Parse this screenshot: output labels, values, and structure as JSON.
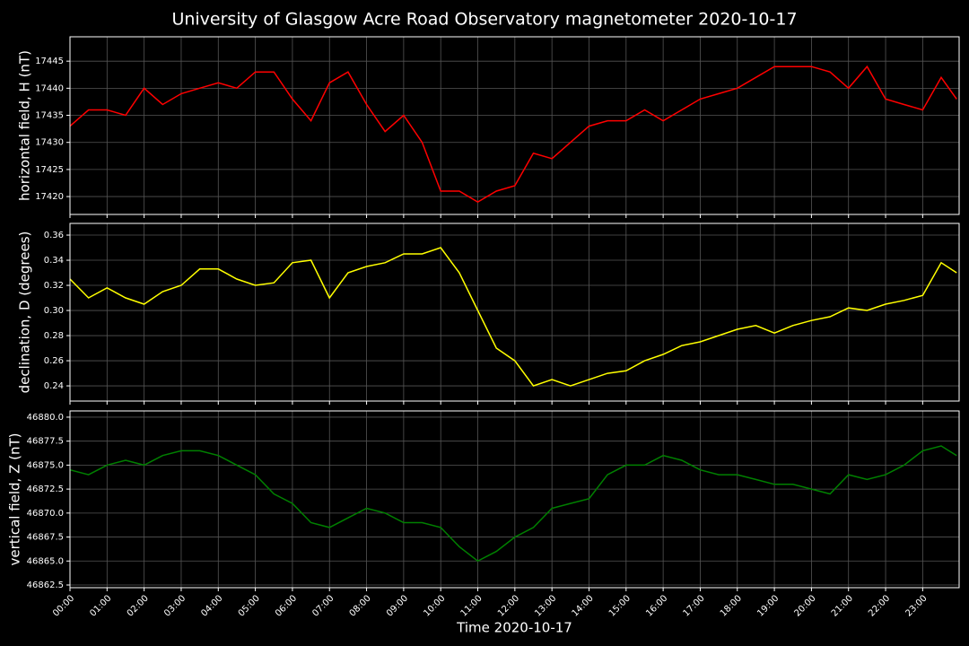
{
  "title": "University of Glasgow Acre Road Observatory magnetometer 2020-10-17",
  "chart_data": [
    {
      "type": "line",
      "ylabel": "horizontal field, H (nT)",
      "x": [
        "00:00",
        "00:30",
        "01:00",
        "01:30",
        "02:00",
        "02:30",
        "03:00",
        "03:30",
        "04:00",
        "04:30",
        "05:00",
        "05:30",
        "06:00",
        "06:30",
        "07:00",
        "07:30",
        "08:00",
        "08:30",
        "09:00",
        "09:30",
        "10:00",
        "10:30",
        "11:00",
        "11:30",
        "12:00",
        "12:30",
        "13:00",
        "13:30",
        "14:00",
        "14:30",
        "15:00",
        "15:30",
        "16:00",
        "16:30",
        "17:00",
        "17:30",
        "18:00",
        "18:30",
        "19:00",
        "19:30",
        "20:00",
        "20:30",
        "21:00",
        "21:30",
        "22:00",
        "22:30",
        "23:00",
        "23:30",
        "23:55"
      ],
      "series": [
        {
          "name": "H",
          "color": "#ff0000",
          "values": [
            17433,
            17436,
            17436,
            17435,
            17440,
            17437,
            17439,
            17440,
            17441,
            17440,
            17443,
            17443,
            17438,
            17434,
            17441,
            17443,
            17437,
            17432,
            17435,
            17430,
            17421,
            17421,
            17419,
            17421,
            17422,
            17428,
            17427,
            17430,
            17433,
            17434,
            17434,
            17436,
            17434,
            17436,
            17438,
            17439,
            17440,
            17442,
            17444,
            17444,
            17444,
            17443,
            17440,
            17444,
            17438,
            17437,
            17436,
            17442,
            17438
          ]
        }
      ],
      "xlim": [
        "00:00",
        "23:59"
      ],
      "xticks": [
        "00:00",
        "01:00",
        "02:00",
        "03:00",
        "04:00",
        "05:00",
        "06:00",
        "07:00",
        "08:00",
        "09:00",
        "10:00",
        "11:00",
        "12:00",
        "13:00",
        "14:00",
        "15:00",
        "16:00",
        "17:00",
        "18:00",
        "19:00",
        "20:00",
        "21:00",
        "22:00",
        "23:00"
      ],
      "ylim": [
        17416.7,
        17449.5
      ],
      "yticks": [
        17420,
        17425,
        17430,
        17435,
        17440,
        17445
      ],
      "grid": true
    },
    {
      "type": "line",
      "ylabel": "declination, D (degrees)",
      "x": [
        "00:00",
        "00:30",
        "01:00",
        "01:30",
        "02:00",
        "02:30",
        "03:00",
        "03:30",
        "04:00",
        "04:30",
        "05:00",
        "05:30",
        "06:00",
        "06:30",
        "07:00",
        "07:30",
        "08:00",
        "08:30",
        "09:00",
        "09:30",
        "10:00",
        "10:30",
        "11:00",
        "11:30",
        "12:00",
        "12:30",
        "13:00",
        "13:30",
        "14:00",
        "14:30",
        "15:00",
        "15:30",
        "16:00",
        "16:30",
        "17:00",
        "17:30",
        "18:00",
        "18:30",
        "19:00",
        "19:30",
        "20:00",
        "20:30",
        "21:00",
        "21:30",
        "22:00",
        "22:30",
        "23:00",
        "23:30",
        "23:55"
      ],
      "series": [
        {
          "name": "D",
          "color": "#ffff00",
          "values": [
            0.325,
            0.31,
            0.318,
            0.31,
            0.305,
            0.315,
            0.32,
            0.333,
            0.333,
            0.325,
            0.32,
            0.322,
            0.338,
            0.34,
            0.31,
            0.33,
            0.335,
            0.338,
            0.345,
            0.345,
            0.35,
            0.33,
            0.3,
            0.27,
            0.26,
            0.24,
            0.245,
            0.24,
            0.245,
            0.25,
            0.252,
            0.26,
            0.265,
            0.272,
            0.275,
            0.28,
            0.285,
            0.288,
            0.282,
            0.288,
            0.292,
            0.295,
            0.302,
            0.3,
            0.305,
            0.308,
            0.312,
            0.338,
            0.33
          ]
        }
      ],
      "xlim": [
        "00:00",
        "23:59"
      ],
      "xticks": [
        "00:00",
        "01:00",
        "02:00",
        "03:00",
        "04:00",
        "05:00",
        "06:00",
        "07:00",
        "08:00",
        "09:00",
        "10:00",
        "11:00",
        "12:00",
        "13:00",
        "14:00",
        "15:00",
        "16:00",
        "17:00",
        "18:00",
        "19:00",
        "20:00",
        "21:00",
        "22:00",
        "23:00"
      ],
      "ylim": [
        0.2279,
        0.3693
      ],
      "yticks": [
        0.24,
        0.26,
        0.28,
        {
          "value": 0.3,
          "label": "0.30"
        },
        0.32,
        0.34,
        0.36
      ],
      "grid": true
    },
    {
      "type": "line",
      "ylabel": "vertical field, Z (nT)",
      "xlabel": "Time 2020-10-17",
      "show_xtick_labels": true,
      "x": [
        "00:00",
        "00:30",
        "01:00",
        "01:30",
        "02:00",
        "02:30",
        "03:00",
        "03:30",
        "04:00",
        "04:30",
        "05:00",
        "05:30",
        "06:00",
        "06:30",
        "07:00",
        "07:30",
        "08:00",
        "08:30",
        "09:00",
        "09:30",
        "10:00",
        "10:30",
        "11:00",
        "11:30",
        "12:00",
        "12:30",
        "13:00",
        "13:30",
        "14:00",
        "14:30",
        "15:00",
        "15:30",
        "16:00",
        "16:30",
        "17:00",
        "17:30",
        "18:00",
        "18:30",
        "19:00",
        "19:30",
        "20:00",
        "20:30",
        "21:00",
        "21:30",
        "22:00",
        "22:30",
        "23:00",
        "23:30",
        "23:55"
      ],
      "series": [
        {
          "name": "Z",
          "color": "#008000",
          "values": [
            46874.5,
            46874,
            46875,
            46875.5,
            46875,
            46876,
            46876.5,
            46876.5,
            46876,
            46875,
            46874,
            46872,
            46871,
            46869,
            46868.5,
            46869.5,
            46870.5,
            46870,
            46869,
            46869,
            46868.5,
            46866.5,
            46865,
            46866,
            46867.5,
            46868.5,
            46870.5,
            46871,
            46871.5,
            46874,
            46875,
            46875,
            46876,
            46875.5,
            46874.5,
            46874,
            46874,
            46873.5,
            46873,
            46873,
            46872.5,
            46872,
            46874,
            46873.5,
            46874,
            46875,
            46876.5,
            46877,
            46876
          ]
        }
      ],
      "xlim": [
        "00:00",
        "23:59"
      ],
      "xticks": [
        "00:00",
        "01:00",
        "02:00",
        "03:00",
        "04:00",
        "05:00",
        "06:00",
        "07:00",
        "08:00",
        "09:00",
        "10:00",
        "11:00",
        "12:00",
        "13:00",
        "14:00",
        "15:00",
        "16:00",
        "17:00",
        "18:00",
        "19:00",
        "20:00",
        "21:00",
        "22:00",
        "23:00"
      ],
      "ylim": [
        46862.22,
        46880.65
      ],
      "yticks": [
        {
          "value": 46862.5,
          "label": "46862.5"
        },
        {
          "value": 46865,
          "label": "46865.0"
        },
        {
          "value": 46867.5,
          "label": "46867.5"
        },
        {
          "value": 46870,
          "label": "46870.0"
        },
        {
          "value": 46872.5,
          "label": "46872.5"
        },
        {
          "value": 46875,
          "label": "46875.0"
        },
        {
          "value": 46877.5,
          "label": "46877.5"
        },
        {
          "value": 46880,
          "label": "46880.0"
        }
      ],
      "grid": true
    }
  ]
}
